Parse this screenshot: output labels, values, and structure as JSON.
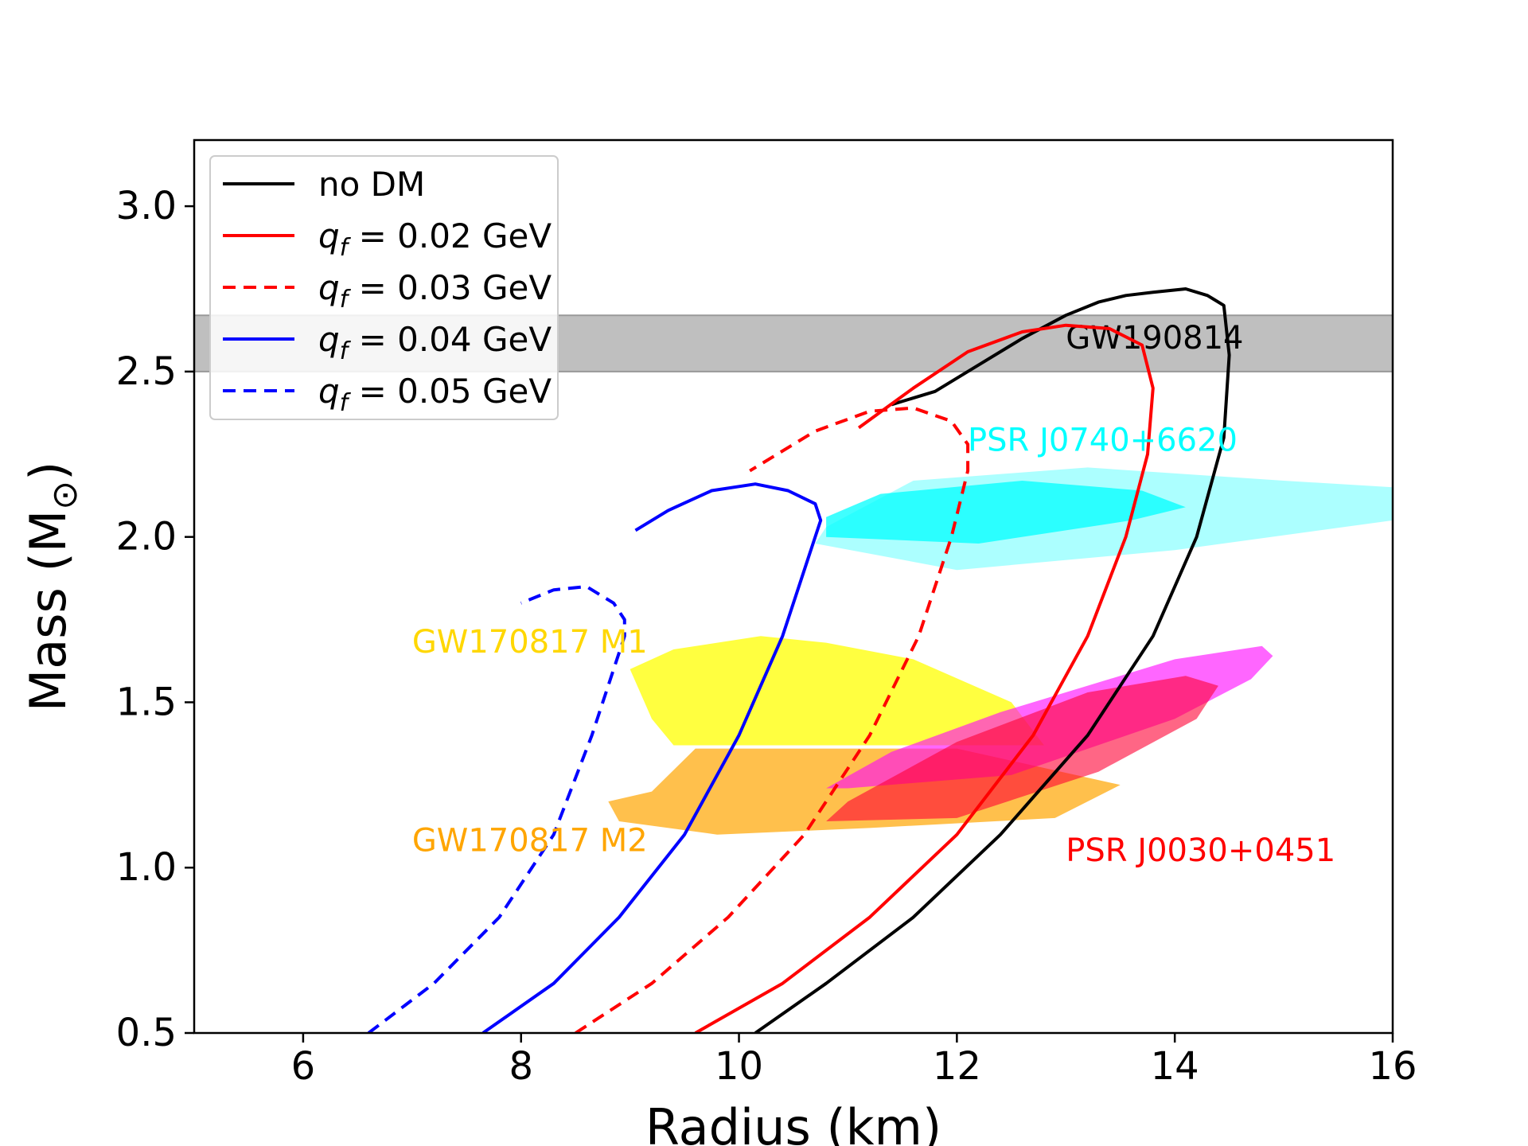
{
  "chart_data": {
    "type": "line",
    "title": "",
    "xlabel": "Radius (km)",
    "ylabel_main": "Mass (M",
    "ylabel_sub": "⊙",
    "ylabel_close": ")",
    "xlim": [
      5,
      16
    ],
    "ylim": [
      0.5,
      3.2
    ],
    "xticks": [
      6,
      8,
      10,
      12,
      14,
      16
    ],
    "xtick_labels": [
      "6",
      "8",
      "10",
      "12",
      "14",
      "16"
    ],
    "yticks": [
      0.5,
      1.0,
      1.5,
      2.0,
      2.5,
      3.0
    ],
    "ytick_labels": [
      "0.5",
      "1.0",
      "1.5",
      "2.0",
      "2.5",
      "3.0"
    ],
    "legend_position": "top-left",
    "series": [
      {
        "name": "no DM",
        "legend_prefix": "no DM",
        "legend_unit": "",
        "color": "#000000",
        "dash": "solid",
        "x": [
          10.15,
          10.8,
          11.6,
          12.4,
          13.2,
          13.8,
          14.2,
          14.45,
          14.5,
          14.45,
          14.3,
          14.1,
          13.8,
          13.55,
          13.3,
          13.0,
          12.6,
          12.2,
          11.8,
          11.4
        ],
        "y": [
          0.5,
          0.65,
          0.85,
          1.1,
          1.4,
          1.7,
          2.0,
          2.3,
          2.55,
          2.7,
          2.73,
          2.75,
          2.74,
          2.73,
          2.71,
          2.67,
          2.6,
          2.52,
          2.44,
          2.4
        ]
      },
      {
        "name": "q_f = 0.02 GeV",
        "legend_prefix": "q",
        "legend_subscript": "f",
        "legend_value": " = 0.02 GeV",
        "color": "#ff0000",
        "dash": "solid",
        "x": [
          9.6,
          10.4,
          11.2,
          12.0,
          12.7,
          13.2,
          13.55,
          13.75,
          13.8,
          13.7,
          13.4,
          13.0,
          12.6,
          12.1,
          11.6,
          11.1
        ],
        "y": [
          0.5,
          0.65,
          0.85,
          1.1,
          1.4,
          1.7,
          2.0,
          2.25,
          2.45,
          2.58,
          2.63,
          2.64,
          2.62,
          2.56,
          2.45,
          2.33
        ]
      },
      {
        "name": "q_f = 0.03 GeV",
        "legend_prefix": "q",
        "legend_subscript": "f",
        "legend_value": " = 0.03 GeV",
        "color": "#ff0000",
        "dash": "dashed",
        "x": [
          8.5,
          9.2,
          9.9,
          10.6,
          11.2,
          11.65,
          11.95,
          12.1,
          12.1,
          11.95,
          11.6,
          11.2,
          10.7,
          10.1
        ],
        "y": [
          0.5,
          0.65,
          0.85,
          1.1,
          1.4,
          1.7,
          2.0,
          2.2,
          2.28,
          2.35,
          2.39,
          2.38,
          2.32,
          2.2
        ]
      },
      {
        "name": "q_f = 0.04 GeV",
        "legend_prefix": "q",
        "legend_subscript": "f",
        "legend_value": " = 0.04 GeV",
        "color": "#0000ff",
        "dash": "solid",
        "x": [
          7.65,
          8.3,
          8.9,
          9.5,
          10.0,
          10.4,
          10.65,
          10.75,
          10.7,
          10.45,
          10.15,
          9.75,
          9.35,
          9.05
        ],
        "y": [
          0.5,
          0.65,
          0.85,
          1.1,
          1.4,
          1.7,
          1.95,
          2.05,
          2.1,
          2.14,
          2.16,
          2.14,
          2.08,
          2.02
        ]
      },
      {
        "name": "q_f = 0.05 GeV",
        "legend_prefix": "q",
        "legend_subscript": "f",
        "legend_value": " = 0.05 GeV",
        "color": "#0000ff",
        "dash": "dashed",
        "x": [
          6.6,
          7.2,
          7.8,
          8.3,
          8.65,
          8.85,
          8.95,
          8.95,
          8.85,
          8.6,
          8.3,
          8.0
        ],
        "y": [
          0.5,
          0.65,
          0.85,
          1.1,
          1.4,
          1.6,
          1.7,
          1.75,
          1.8,
          1.85,
          1.84,
          1.8
        ]
      }
    ],
    "band": {
      "name": "GW190814",
      "ymin": 2.5,
      "ymax": 2.67,
      "color": "#bfbfbf",
      "label": "GW190814",
      "label_color": "#000000",
      "label_x": 13.0,
      "label_y": 2.57
    },
    "regions": [
      {
        "name": "GW170817 M2",
        "color": "#ffa500",
        "opacity": 0.7,
        "x": [
          9.7,
          12.0,
          13.5,
          12.9,
          11.2,
          9.8,
          8.9,
          8.8,
          9.2,
          9.6
        ],
        "y": [
          1.36,
          1.36,
          1.25,
          1.15,
          1.12,
          1.1,
          1.14,
          1.2,
          1.23,
          1.36
        ]
      },
      {
        "name": "GW170817 M1",
        "color": "#ffff00",
        "opacity": 0.75,
        "x": [
          9.6,
          12.8,
          12.5,
          11.6,
          10.8,
          10.2,
          9.4,
          9.0,
          9.2,
          9.4
        ],
        "y": [
          1.37,
          1.37,
          1.5,
          1.63,
          1.68,
          1.7,
          1.66,
          1.6,
          1.45,
          1.37
        ]
      },
      {
        "name": "PSR J0740+6620 outer",
        "color": "#80ffff",
        "opacity": 0.65,
        "x": [
          10.7,
          12.0,
          14.0,
          16.0,
          16.0,
          15.0,
          13.2,
          11.6,
          10.8
        ],
        "y": [
          1.98,
          1.9,
          1.96,
          2.05,
          2.15,
          2.17,
          2.21,
          2.17,
          2.03
        ]
      },
      {
        "name": "PSR J0740+6620 inner",
        "color": "#00ffff",
        "opacity": 0.75,
        "x": [
          10.8,
          12.2,
          13.6,
          14.1,
          13.7,
          12.6,
          11.3,
          10.8
        ],
        "y": [
          2.0,
          1.98,
          2.05,
          2.09,
          2.14,
          2.17,
          2.13,
          2.06
        ]
      },
      {
        "name": "PSR J0030+0451 outer",
        "color": "#ff00ff",
        "opacity": 0.6,
        "x": [
          11.0,
          12.5,
          14.0,
          14.7,
          14.9,
          14.8,
          14.0,
          12.4,
          11.4,
          10.8
        ],
        "y": [
          1.24,
          1.28,
          1.45,
          1.57,
          1.64,
          1.67,
          1.63,
          1.47,
          1.35,
          1.24
        ]
      },
      {
        "name": "PSR J0030+0451 inner",
        "color": "#ff0033",
        "opacity": 0.6,
        "x": [
          10.8,
          12.0,
          13.3,
          14.2,
          14.4,
          14.1,
          13.2,
          12.0,
          11.0
        ],
        "y": [
          1.14,
          1.15,
          1.29,
          1.45,
          1.55,
          1.58,
          1.53,
          1.38,
          1.2
        ]
      }
    ],
    "annotations": [
      {
        "text": "GW170817 M1",
        "x": 7.0,
        "y": 1.65,
        "color": "#ffd700"
      },
      {
        "text": "GW170817 M2",
        "x": 7.0,
        "y": 1.05,
        "color": "#ffa500"
      },
      {
        "text": "PSR J0740+6620",
        "x": 12.1,
        "y": 2.26,
        "color": "#00ffff"
      },
      {
        "text": "PSR J0030+0451",
        "x": 13.0,
        "y": 1.02,
        "color": "#ff0000"
      }
    ]
  }
}
